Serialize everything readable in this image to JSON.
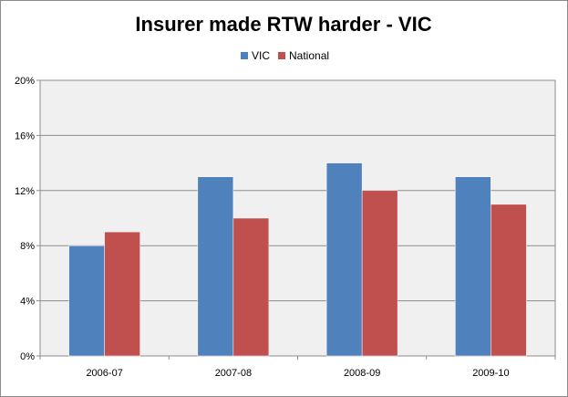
{
  "chart_data": {
    "type": "bar",
    "title": "Insurer made RTW harder -  VIC",
    "categories": [
      "2006-07",
      "2007-08",
      "2008-09",
      "2009-10"
    ],
    "series": [
      {
        "name": "VIC",
        "color": "#4f81bd",
        "values": [
          8,
          13,
          14,
          13
        ]
      },
      {
        "name": "National",
        "color": "#c0504d",
        "values": [
          9,
          10,
          12,
          11
        ]
      }
    ],
    "ylim": [
      0,
      20
    ],
    "yticks": [
      "0%",
      "4%",
      "8%",
      "12%",
      "16%",
      "20%"
    ],
    "ytick_values": [
      0,
      4,
      8,
      12,
      16,
      20
    ],
    "legend_position": "top-center",
    "grid": true,
    "plot_background": "#f0f0f0"
  }
}
